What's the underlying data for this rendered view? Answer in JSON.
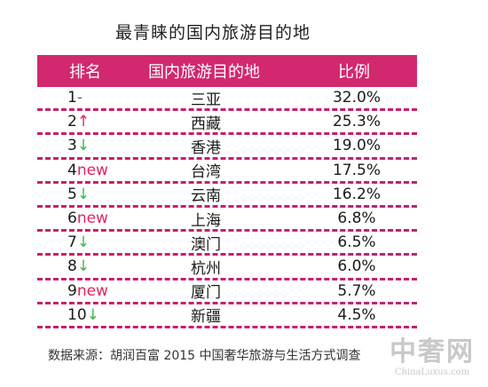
{
  "title": "最青睐的国内旅游目的地",
  "headers": {
    "rank": "排名",
    "destination": "国内旅游目的地",
    "ratio": "比例"
  },
  "chart_data": {
    "type": "table",
    "title": "最青睐的国内旅游目的地",
    "columns": [
      "排名",
      "国内旅游目的地",
      "比例"
    ],
    "rows": [
      {
        "rank": "1",
        "trend": "-",
        "destination": "三亚",
        "value": "32.0%"
      },
      {
        "rank": "2",
        "trend": "↑",
        "destination": "西藏",
        "value": "25.3%"
      },
      {
        "rank": "3",
        "trend": "↓",
        "destination": "香港",
        "value": "19.0%"
      },
      {
        "rank": "4",
        "trend": "new",
        "destination": "台湾",
        "value": "17.5%"
      },
      {
        "rank": "5",
        "trend": "↓",
        "destination": "云南",
        "value": "16.2%"
      },
      {
        "rank": "6",
        "trend": "new",
        "destination": "上海",
        "value": "6.8%"
      },
      {
        "rank": "7",
        "trend": "↓",
        "destination": "澳门",
        "value": "6.5%"
      },
      {
        "rank": "8",
        "trend": "↓",
        "destination": "杭州",
        "value": "6.0%"
      },
      {
        "rank": "9",
        "trend": "new",
        "destination": "厦门",
        "value": "5.7%"
      },
      {
        "rank": "10",
        "trend": "↓",
        "destination": "新疆",
        "value": "4.5%"
      }
    ]
  },
  "source": "数据来源：胡润百富 2015 中国奢华旅游与生活方式调查",
  "watermark": {
    "main": "中奢网",
    "sub": "ChinaLuxus.com"
  },
  "colors": {
    "header_bg": "#d2286f",
    "up": "#e0245e",
    "down": "#3cb44b",
    "new": "#e0245e"
  }
}
